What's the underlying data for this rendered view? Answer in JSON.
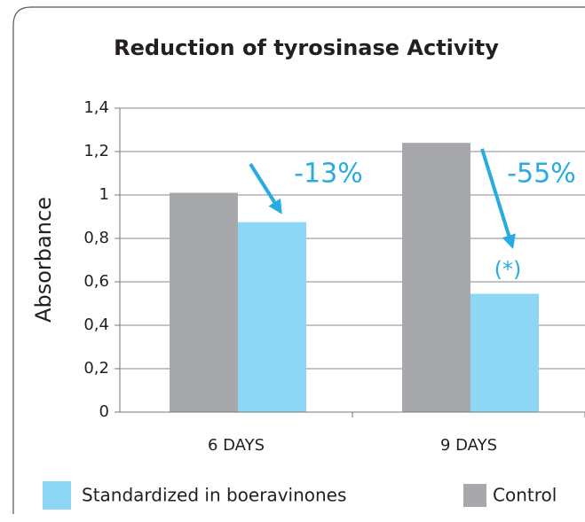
{
  "chart_data": {
    "type": "bar",
    "title": "Reduction of tyrosinase Activity",
    "y_label": "Absorbance",
    "categories": [
      "6 DAYS",
      "9 DAYS"
    ],
    "series": [
      {
        "name": "Control",
        "color": "#a7a8ab",
        "values": [
          1.01,
          1.24
        ]
      },
      {
        "name": "Standardized in boeravinones",
        "color": "#8dd7f5",
        "values": [
          0.875,
          0.545
        ]
      }
    ],
    "ylim": [
      0,
      1.4
    ],
    "yticks": [
      0,
      {
        "value": 0.2,
        "label": "0,2"
      },
      {
        "value": 0.4,
        "label": "0,4"
      },
      {
        "value": 0.6,
        "label": "0,6"
      },
      {
        "value": 0.8,
        "label": "0,8"
      },
      1,
      {
        "value": 1.2,
        "label": "1,2"
      },
      {
        "value": 1.4,
        "label": "1,4"
      }
    ],
    "grid": true,
    "annotations": [
      "-13%",
      "-55%",
      "(*)"
    ]
  }
}
